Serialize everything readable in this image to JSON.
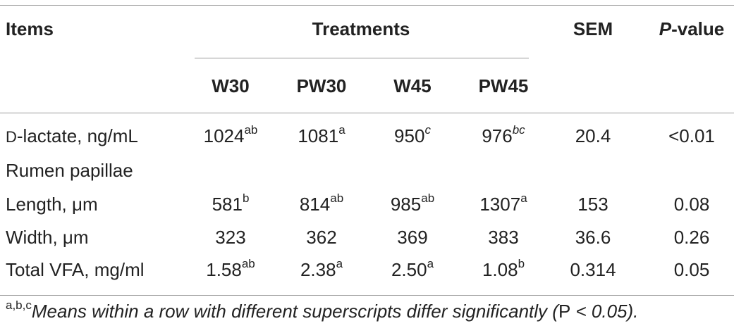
{
  "header": {
    "items": "Items",
    "treatments": "Treatments",
    "sem": "SEM",
    "pvalue_p": "P",
    "pvalue_rest": "-value",
    "groups": [
      "W30",
      "PW30",
      "W45",
      "PW45"
    ]
  },
  "rows": [
    {
      "label_prefix": "D",
      "label_rest": "-lactate, ng/mL",
      "cells": [
        {
          "v": "1024",
          "s": "ab",
          "i": false
        },
        {
          "v": "1081",
          "s": "a",
          "i": false
        },
        {
          "v": "950",
          "s": "c",
          "i": true
        },
        {
          "v": "976",
          "s": "bc",
          "i": true
        }
      ],
      "sem": "20.4",
      "p": "<0.01"
    },
    {
      "label": "Rumen papillae"
    },
    {
      "label": "Length, μm",
      "cells": [
        {
          "v": "581",
          "s": "b",
          "i": false
        },
        {
          "v": "814",
          "s": "ab",
          "i": false
        },
        {
          "v": "985",
          "s": "ab",
          "i": false
        },
        {
          "v": "1307",
          "s": "a",
          "i": false
        }
      ],
      "sem": "153",
      "p": "0.08"
    },
    {
      "label": "Width, μm",
      "cells": [
        {
          "v": "323",
          "s": "",
          "i": false
        },
        {
          "v": "362",
          "s": "",
          "i": false
        },
        {
          "v": "369",
          "s": "",
          "i": false
        },
        {
          "v": "383",
          "s": "",
          "i": false
        }
      ],
      "sem": "36.6",
      "p": "0.26"
    },
    {
      "label": "Total VFA, mg/ml",
      "cells": [
        {
          "v": "1.58",
          "s": "ab",
          "i": false
        },
        {
          "v": "2.38",
          "s": "a",
          "i": false
        },
        {
          "v": "2.50",
          "s": "a",
          "i": false
        },
        {
          "v": "1.08",
          "s": "b",
          "i": false
        }
      ],
      "sem": "0.314",
      "p": "0.05"
    }
  ],
  "footnote": {
    "marks": "a,b,c",
    "text": "Means within a row with different superscripts differ significantly (",
    "p_symbol": "P",
    "threshold": " < 0.05",
    "close": ")."
  }
}
